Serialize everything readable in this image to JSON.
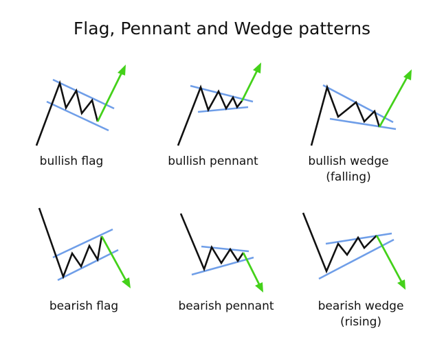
{
  "title": "Flag, Pennant and Wedge patterns",
  "colors": {
    "price_line": "#111111",
    "trend_lines": "#6f9ee8",
    "breakout_arrow": "#44d11a",
    "background": "#ffffff"
  },
  "patterns": [
    {
      "id": "bullish-flag",
      "caption": [
        "bullish flag"
      ]
    },
    {
      "id": "bullish-pennant",
      "caption": [
        "bullish pennant"
      ]
    },
    {
      "id": "bullish-wedge",
      "caption": [
        "bullish wedge",
        "(falling)"
      ]
    },
    {
      "id": "bearish-flag",
      "caption": [
        "bearish flag"
      ]
    },
    {
      "id": "bearish-pennant",
      "caption": [
        "bearish pennant"
      ]
    },
    {
      "id": "bearish-wedge",
      "caption": [
        "bearish wedge",
        "(rising)"
      ]
    }
  ]
}
